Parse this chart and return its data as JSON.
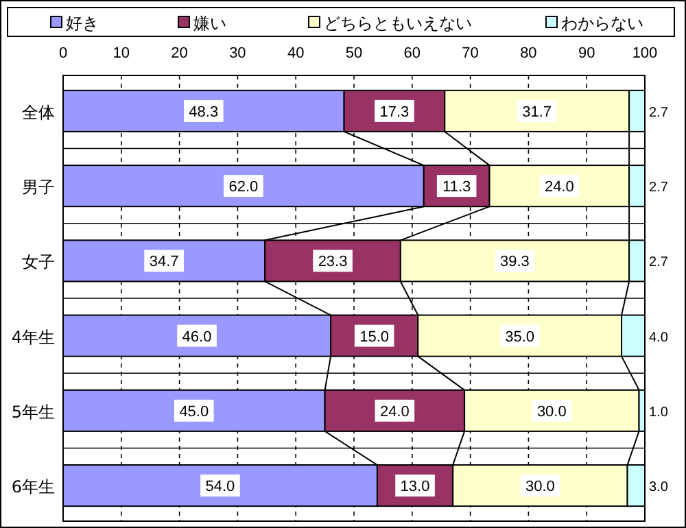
{
  "chart_data": {
    "type": "bar",
    "orientation": "horizontal",
    "stacked": true,
    "categories": [
      "全体",
      "男子",
      "女子",
      "4年生",
      "5年生",
      "6年生"
    ],
    "series": [
      {
        "name": "好き",
        "color": "#9999ff",
        "values": [
          48.3,
          62.0,
          34.7,
          46.0,
          45.0,
          54.0
        ],
        "value_labels": [
          "48.3",
          "62.0",
          "34.7",
          "46.0",
          "45.0",
          "54.0"
        ]
      },
      {
        "name": "嫌い",
        "color": "#993366",
        "values": [
          17.3,
          11.3,
          23.3,
          15.0,
          24.0,
          13.0
        ],
        "value_labels": [
          "17.3",
          "11.3",
          "23.3",
          "15.0",
          "24.0",
          "13.0"
        ]
      },
      {
        "name": "どちらともいえない",
        "color": "#ffffcc",
        "values": [
          31.7,
          24.0,
          39.3,
          35.0,
          30.0,
          30.0
        ],
        "value_labels": [
          "31.7",
          "24.0",
          "39.3",
          "35.0",
          "30.0",
          "30.0"
        ]
      },
      {
        "name": "わからない",
        "color": "#ccffff",
        "values": [
          2.7,
          2.7,
          2.7,
          4.0,
          1.0,
          3.0
        ],
        "value_labels": [
          "2.7",
          "2.7",
          "2.7",
          "4.0",
          "1.0",
          "3.0"
        ]
      }
    ],
    "xlim": [
      0,
      100
    ],
    "xticks": [
      0,
      10,
      20,
      30,
      40,
      50,
      60,
      70,
      80,
      90,
      100
    ],
    "grid": "x",
    "legend": "top"
  }
}
